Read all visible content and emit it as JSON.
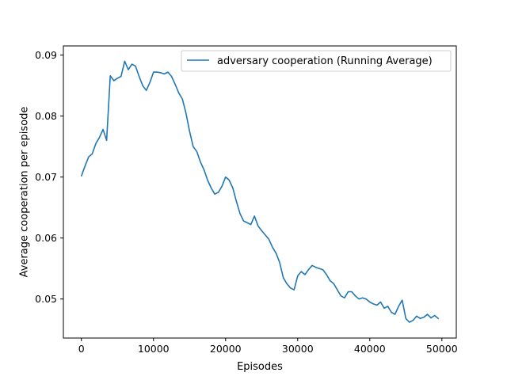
{
  "chart_data": {
    "type": "line",
    "title": "",
    "xlabel": "Episodes",
    "ylabel": "Average cooperation per episode",
    "xlim": [
      -2500,
      52000
    ],
    "ylim": [
      0.0436,
      0.0915
    ],
    "xticks": [
      0,
      10000,
      20000,
      30000,
      40000,
      50000
    ],
    "yticks": [
      0.05,
      0.06,
      0.07,
      0.08,
      0.09
    ],
    "legend": {
      "position": "upper-right"
    },
    "grid": false,
    "series": [
      {
        "name": "adversary cooperation (Running Average)",
        "color": "#1f77b4",
        "x": [
          0,
          500,
          1000,
          1500,
          2000,
          2500,
          3000,
          3500,
          4000,
          4500,
          5000,
          5500,
          6000,
          6500,
          7000,
          7500,
          8000,
          8500,
          9000,
          9500,
          10000,
          10500,
          11000,
          11500,
          12000,
          12500,
          13000,
          13500,
          14000,
          14500,
          15000,
          15500,
          16000,
          16500,
          17000,
          17500,
          18000,
          18500,
          19000,
          19500,
          20000,
          20500,
          21000,
          21500,
          22000,
          22500,
          23000,
          23500,
          24000,
          24500,
          25000,
          25500,
          26000,
          26500,
          27000,
          27500,
          28000,
          28500,
          29000,
          29500,
          30000,
          30500,
          31000,
          31500,
          32000,
          32500,
          33000,
          33500,
          34000,
          34500,
          35000,
          35500,
          36000,
          36500,
          37000,
          37500,
          38000,
          38500,
          39000,
          39500,
          40000,
          40500,
          41000,
          41500,
          42000,
          42500,
          43000,
          43500,
          44000,
          44500,
          45000,
          45500,
          46000,
          46500,
          47000,
          47500,
          48000,
          48500,
          49000,
          49500
        ],
        "y": [
          0.0702,
          0.0718,
          0.0733,
          0.0738,
          0.0755,
          0.0765,
          0.0778,
          0.076,
          0.0866,
          0.0858,
          0.0862,
          0.0865,
          0.089,
          0.0876,
          0.0885,
          0.0882,
          0.0865,
          0.085,
          0.0842,
          0.0855,
          0.0872,
          0.0872,
          0.0871,
          0.0869,
          0.0872,
          0.0865,
          0.0852,
          0.0838,
          0.0828,
          0.0805,
          0.0775,
          0.075,
          0.0742,
          0.0725,
          0.0712,
          0.0695,
          0.0682,
          0.0672,
          0.0675,
          0.0685,
          0.07,
          0.0695,
          0.0682,
          0.066,
          0.064,
          0.0628,
          0.0625,
          0.0622,
          0.0636,
          0.062,
          0.0612,
          0.0605,
          0.0598,
          0.0585,
          0.0575,
          0.056,
          0.0535,
          0.0525,
          0.0518,
          0.0515,
          0.0538,
          0.0545,
          0.054,
          0.0548,
          0.0555,
          0.0552,
          0.055,
          0.0548,
          0.054,
          0.053,
          0.0525,
          0.0515,
          0.0505,
          0.0502,
          0.0512,
          0.0512,
          0.0505,
          0.05,
          0.0502,
          0.05,
          0.0495,
          0.0492,
          0.049,
          0.0495,
          0.0485,
          0.0488,
          0.0478,
          0.0475,
          0.0488,
          0.0498,
          0.0468,
          0.0462,
          0.0465,
          0.0472,
          0.0468,
          0.047,
          0.0475,
          0.0469,
          0.0473,
          0.0468
        ]
      }
    ]
  }
}
